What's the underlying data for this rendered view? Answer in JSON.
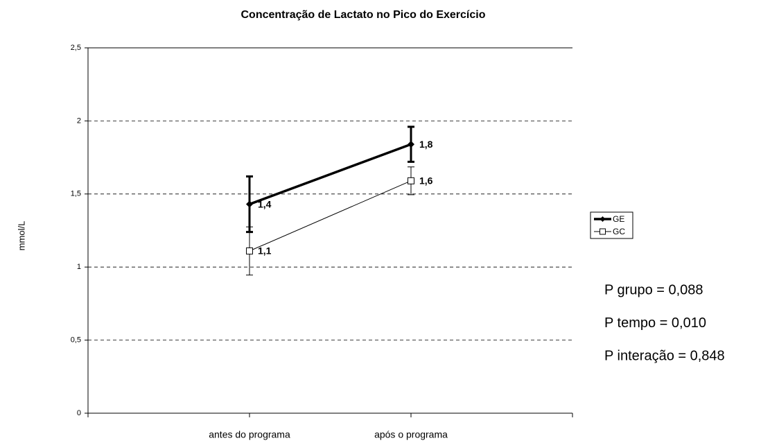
{
  "chart_data": {
    "type": "line",
    "title": "Concentração de Lactato no Pico do Exercício",
    "y_label": "mmol/L",
    "categories": [
      "antes do programa",
      "após o programa"
    ],
    "series": [
      {
        "name": "GE",
        "color": "#000000",
        "marker": "diamond",
        "values": [
          1.43,
          1.84
        ],
        "value_labels": [
          "1,4",
          "1,8"
        ],
        "errors": [
          0.19,
          0.12
        ]
      },
      {
        "name": "GC",
        "color": "#000000",
        "marker": "square",
        "values": [
          1.11,
          1.59
        ],
        "value_labels": [
          "1,1",
          "1,6"
        ],
        "errors": [
          0.165,
          0.095
        ]
      }
    ],
    "ylim": [
      0,
      2.5
    ],
    "yticks": [
      0,
      {
        "value": 0.5,
        "label": "0,5"
      },
      1,
      {
        "value": 1.5,
        "label": "1,5"
      },
      2,
      {
        "value": 2.5,
        "label": "2,5"
      }
    ],
    "grid": true,
    "legend": "right",
    "annotations": [
      "P grupo = 0,088",
      "P tempo = 0,010",
      "P interação = 0,848"
    ]
  }
}
